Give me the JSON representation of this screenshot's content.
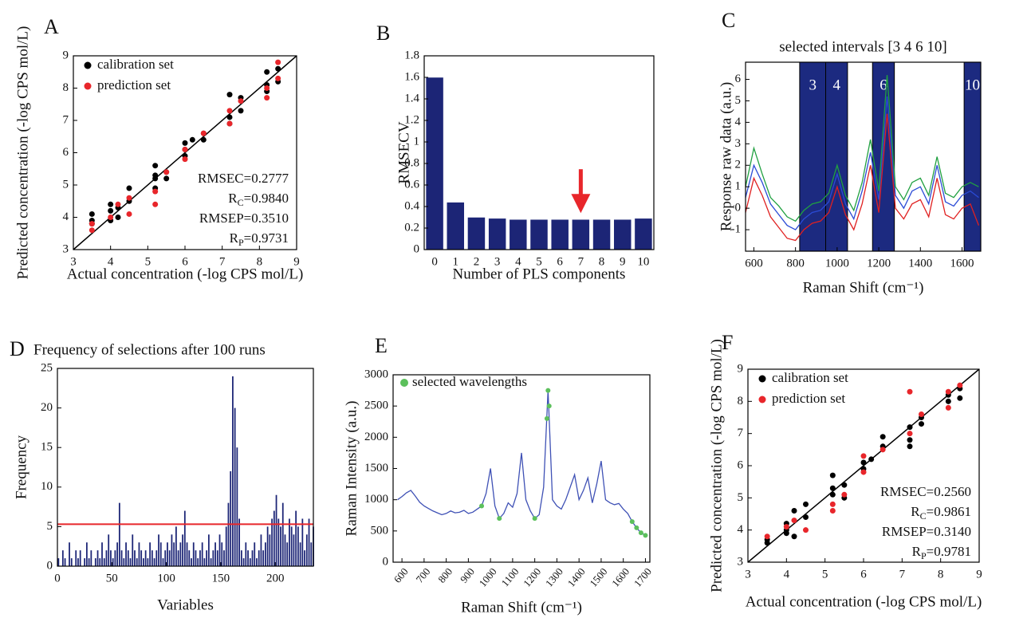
{
  "chart_data": [
    {
      "panel": "A",
      "type": "scatter",
      "xlabel": "Actual concentration (-log CPS mol/L)",
      "ylabel": "Predicted concentration (-log CPS mol/L)",
      "xlim": [
        3,
        9
      ],
      "ylim": [
        3,
        9
      ],
      "xticks": [
        3,
        4,
        5,
        6,
        7,
        8,
        9
      ],
      "yticks": [
        3,
        4,
        5,
        6,
        7,
        8,
        9
      ],
      "series": [
        {
          "name": "calibration set",
          "color": "#000000",
          "x": [
            3.5,
            3.5,
            3.5,
            4,
            4,
            4,
            4.2,
            4.2,
            4.5,
            4.5,
            5.2,
            5.2,
            5.2,
            5.2,
            5.5,
            5.5,
            6,
            6,
            6,
            6.2,
            6.5,
            6.5,
            7.2,
            7.2,
            7.2,
            7.5,
            7.5,
            8.2,
            8.2,
            8.2,
            8.5,
            8.5
          ],
          "values": [
            3.8,
            4.1,
            3.9,
            3.9,
            4.2,
            4.4,
            4.3,
            4.0,
            4.5,
            4.9,
            5.2,
            5.6,
            4.9,
            5.3,
            5.2,
            5.4,
            5.9,
            6.3,
            6.1,
            6.4,
            6.6,
            6.4,
            7.1,
            7.8,
            6.9,
            7.3,
            7.7,
            7.9,
            8.5,
            8.1,
            8.6,
            8.2
          ]
        },
        {
          "name": "prediction set",
          "color": "#e8262b",
          "x": [
            3.5,
            3.5,
            4,
            4.2,
            4.5,
            4.5,
            5.2,
            5.2,
            5.5,
            6,
            6,
            6.5,
            7.2,
            7.2,
            7.5,
            8.2,
            8.2,
            8.5,
            8.5
          ],
          "values": [
            3.6,
            3.8,
            4.0,
            4.4,
            4.1,
            4.6,
            4.4,
            4.8,
            5.4,
            6.1,
            5.8,
            6.6,
            7.3,
            6.9,
            7.6,
            8.0,
            7.7,
            8.8,
            8.3
          ]
        }
      ],
      "annotations": [
        {
          "text": "RMSEC=0.2777"
        },
        {
          "text": "R",
          "sub": "C",
          "rest": "=0.9840"
        },
        {
          "text": "RMSEP=0.3510"
        },
        {
          "text": "R",
          "sub": "P",
          "rest": "=0.9731"
        }
      ]
    },
    {
      "panel": "B",
      "type": "bar",
      "xlabel": "Number of PLS components",
      "ylabel": "RMSECV",
      "categories": [
        "0",
        "1",
        "2",
        "3",
        "4",
        "5",
        "6",
        "7",
        "8",
        "9",
        "10"
      ],
      "values": [
        1.6,
        0.44,
        0.3,
        0.29,
        0.28,
        0.28,
        0.28,
        0.28,
        0.28,
        0.28,
        0.29
      ],
      "color": "#1c2576",
      "ylim": [
        0,
        1.8
      ],
      "yticks": [
        0,
        0.2,
        0.4,
        0.6,
        0.8,
        1,
        1.2,
        1.4,
        1.6,
        1.8
      ],
      "marker": {
        "category_index": 7,
        "color": "#e8262b"
      }
    },
    {
      "panel": "C",
      "type": "line",
      "title": "selected intervals [3 4 6 10]",
      "xlabel": "Raman Shift (cm⁻¹)",
      "ylabel": "Response raw data (a.u.)",
      "xlim": [
        560,
        1690
      ],
      "ylim": [
        -2,
        6.8
      ],
      "xticks": [
        600,
        800,
        1000,
        1200,
        1400,
        1600
      ],
      "yticks": [
        -1,
        0,
        1,
        2,
        3,
        4,
        5,
        6
      ],
      "intervals": [
        {
          "label": "3",
          "range": [
            820,
            945
          ]
        },
        {
          "label": "4",
          "range": [
            945,
            1050
          ]
        },
        {
          "label": "6",
          "range": [
            1170,
            1275
          ]
        },
        {
          "label": "10",
          "range": [
            1610,
            1690
          ]
        }
      ],
      "interval_color": "#1c2a80",
      "x": [
        560,
        600,
        640,
        680,
        720,
        760,
        800,
        840,
        880,
        920,
        960,
        1000,
        1040,
        1080,
        1120,
        1160,
        1200,
        1240,
        1280,
        1320,
        1360,
        1400,
        1440,
        1480,
        1520,
        1560,
        1600,
        1640,
        1680
      ],
      "series": [
        {
          "color": "#2b4bd6",
          "values": [
            0.5,
            2.0,
            1.2,
            0.2,
            -0.3,
            -0.8,
            -1.0,
            -0.5,
            -0.2,
            -0.1,
            0.3,
            1.6,
            0.2,
            -0.5,
            0.8,
            2.6,
            0.4,
            5.2,
            0.6,
            0.0,
            0.8,
            1.0,
            0.2,
            2.0,
            0.3,
            0.1,
            0.6,
            0.8,
            0.5
          ]
        },
        {
          "color": "#e02020",
          "values": [
            -0.2,
            1.4,
            0.6,
            -0.4,
            -0.9,
            -1.4,
            -1.5,
            -1.0,
            -0.7,
            -0.6,
            -0.2,
            1.0,
            -0.3,
            -1.0,
            0.2,
            2.0,
            -0.2,
            4.4,
            0.0,
            -0.5,
            0.2,
            0.4,
            -0.4,
            1.4,
            -0.3,
            -0.5,
            0.0,
            0.2,
            -0.8
          ]
        },
        {
          "color": "#20a040",
          "values": [
            1.0,
            2.8,
            1.6,
            0.5,
            0.1,
            -0.4,
            -0.6,
            -0.1,
            0.2,
            0.3,
            0.7,
            2.0,
            0.6,
            -0.1,
            1.2,
            3.2,
            0.8,
            6.2,
            1.0,
            0.4,
            1.2,
            1.4,
            0.6,
            2.4,
            0.7,
            0.5,
            1.0,
            1.2,
            1.0
          ]
        }
      ]
    },
    {
      "panel": "D",
      "type": "bar",
      "title": "Frequency of selections after 100 runs",
      "xlabel": "Variables",
      "ylabel": "Frequency",
      "xlim": [
        0,
        235
      ],
      "ylim": [
        0,
        25
      ],
      "xticks": [
        0,
        50,
        100,
        150,
        200
      ],
      "yticks": [
        0,
        5,
        10,
        15,
        20,
        25
      ],
      "color": "#1c2576",
      "threshold": 5.3,
      "threshold_color": "#e8262b",
      "x": [
        1,
        3,
        5,
        7,
        9,
        11,
        13,
        15,
        17,
        19,
        21,
        23,
        25,
        27,
        29,
        31,
        33,
        35,
        37,
        39,
        41,
        43,
        45,
        47,
        49,
        51,
        53,
        55,
        57,
        59,
        61,
        63,
        65,
        67,
        69,
        71,
        73,
        75,
        77,
        79,
        81,
        83,
        85,
        87,
        89,
        91,
        93,
        95,
        97,
        99,
        101,
        103,
        105,
        107,
        109,
        111,
        113,
        115,
        117,
        119,
        121,
        123,
        125,
        127,
        129,
        131,
        133,
        135,
        137,
        139,
        141,
        143,
        145,
        147,
        149,
        151,
        153,
        155,
        157,
        159,
        161,
        163,
        165,
        167,
        169,
        171,
        173,
        175,
        177,
        179,
        181,
        183,
        185,
        187,
        189,
        191,
        193,
        195,
        197,
        199,
        201,
        203,
        205,
        207,
        209,
        211,
        213,
        215,
        217,
        219,
        221,
        223,
        225,
        227,
        229,
        231,
        233,
        235
      ],
      "values": [
        1,
        0,
        2,
        1,
        0,
        3,
        1,
        0,
        2,
        1,
        2,
        0,
        1,
        3,
        1,
        2,
        0,
        1,
        2,
        1,
        3,
        1,
        2,
        4,
        2,
        1,
        2,
        3,
        8,
        2,
        1,
        3,
        2,
        1,
        4,
        2,
        1,
        3,
        2,
        1,
        2,
        1,
        3,
        2,
        1,
        2,
        4,
        3,
        1,
        2,
        3,
        2,
        4,
        3,
        5,
        2,
        3,
        4,
        7,
        3,
        2,
        1,
        3,
        2,
        1,
        2,
        3,
        1,
        2,
        4,
        1,
        2,
        3,
        2,
        4,
        3,
        2,
        5,
        8,
        12,
        24,
        20,
        15,
        6,
        2,
        1,
        3,
        2,
        1,
        2,
        3,
        1,
        2,
        4,
        2,
        3,
        5,
        4,
        6,
        7,
        9,
        6,
        5,
        8,
        4,
        3,
        6,
        5,
        4,
        7,
        5,
        3,
        6,
        2,
        4,
        6,
        3,
        5
      ]
    },
    {
      "panel": "E",
      "type": "line",
      "xlabel": "Raman Shift (cm⁻¹)",
      "ylabel": "Raman Intensity (a.u.)",
      "xlim": [
        560,
        1720
      ],
      "ylim": [
        0,
        3000
      ],
      "xticks": [
        600,
        700,
        800,
        900,
        1000,
        1100,
        1200,
        1300,
        1400,
        1500,
        1600,
        1700
      ],
      "yticks": [
        0,
        500,
        1000,
        1500,
        2000,
        2500,
        3000
      ],
      "x": [
        580,
        600,
        620,
        640,
        660,
        680,
        700,
        720,
        740,
        760,
        780,
        800,
        820,
        840,
        860,
        880,
        900,
        920,
        940,
        960,
        980,
        1000,
        1020,
        1040,
        1060,
        1080,
        1100,
        1120,
        1140,
        1160,
        1180,
        1200,
        1220,
        1240,
        1260,
        1280,
        1300,
        1320,
        1340,
        1360,
        1380,
        1400,
        1420,
        1440,
        1460,
        1480,
        1500,
        1520,
        1540,
        1560,
        1580,
        1600,
        1620,
        1640,
        1660,
        1680,
        1700
      ],
      "series": [
        {
          "color": "#3f51b5",
          "values": [
            1000,
            1050,
            1110,
            1150,
            1060,
            960,
            900,
            860,
            820,
            790,
            760,
            780,
            820,
            790,
            800,
            830,
            780,
            800,
            850,
            900,
            1100,
            1500,
            900,
            700,
            780,
            950,
            880,
            1100,
            1750,
            1000,
            820,
            700,
            760,
            1200,
            2750,
            1000,
            900,
            850,
            1000,
            1200,
            1400,
            1000,
            1150,
            1350,
            950,
            1250,
            1620,
            1000,
            950,
            920,
            940,
            850,
            780,
            650,
            550,
            470,
            430
          ]
        }
      ],
      "points": {
        "name": "selected wavelengths",
        "color": "#5cc05c",
        "x": [
          960,
          1040,
          1200,
          1255,
          1260,
          1265,
          1640,
          1660,
          1680,
          1700
        ],
        "values": [
          900,
          700,
          700,
          2300,
          2750,
          2500,
          650,
          550,
          470,
          430
        ]
      }
    },
    {
      "panel": "F",
      "type": "scatter",
      "xlabel": "Actual concentration (-log CPS mol/L)",
      "ylabel": "Predicted concentration (-log CPS mol/L)",
      "xlim": [
        3,
        9
      ],
      "ylim": [
        3,
        9
      ],
      "xticks": [
        3,
        4,
        5,
        6,
        7,
        8,
        9
      ],
      "yticks": [
        3,
        4,
        5,
        6,
        7,
        8,
        9
      ],
      "series": [
        {
          "name": "calibration set",
          "color": "#000000",
          "x": [
            3.5,
            3.5,
            4,
            4,
            4,
            4.2,
            4.2,
            4.5,
            4.5,
            5.2,
            5.2,
            5.2,
            5.5,
            5.5,
            6,
            6,
            6.2,
            6.5,
            6.5,
            7.2,
            7.2,
            7.2,
            7.5,
            7.5,
            8.2,
            8.2,
            8.5,
            8.5
          ],
          "values": [
            3.7,
            3.6,
            4.0,
            4.2,
            3.9,
            4.6,
            3.8,
            4.4,
            4.8,
            5.7,
            5.3,
            5.1,
            5.4,
            5.0,
            6.1,
            5.9,
            6.2,
            6.6,
            6.9,
            6.8,
            7.2,
            6.6,
            7.5,
            7.3,
            8.0,
            8.2,
            8.4,
            8.1
          ]
        },
        {
          "name": "prediction set",
          "color": "#e8262b",
          "x": [
            3.5,
            4,
            4.2,
            4.5,
            5.2,
            5.2,
            5.5,
            6,
            6,
            6.5,
            7.2,
            7.2,
            7.5,
            8.2,
            8.2,
            8.5
          ],
          "values": [
            3.8,
            4.1,
            4.3,
            4.0,
            4.6,
            4.8,
            5.1,
            5.8,
            6.3,
            6.5,
            8.3,
            7.0,
            7.6,
            7.8,
            8.3,
            8.5
          ]
        }
      ],
      "annotations": [
        {
          "text": "RMSEC=0.2560"
        },
        {
          "text": "R",
          "sub": "C",
          "rest": "=0.9861"
        },
        {
          "text": "RMSEP=0.3140"
        },
        {
          "text": "R",
          "sub": "P",
          "rest": "=0.9781"
        }
      ]
    }
  ]
}
